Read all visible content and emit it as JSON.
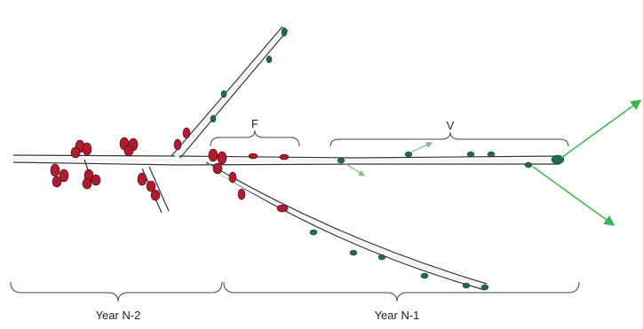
{
  "braces": [
    {
      "label": "F"
    },
    {
      "label": "V"
    },
    {
      "label": "Year N-2"
    },
    {
      "label": "Year N-1"
    }
  ]
}
